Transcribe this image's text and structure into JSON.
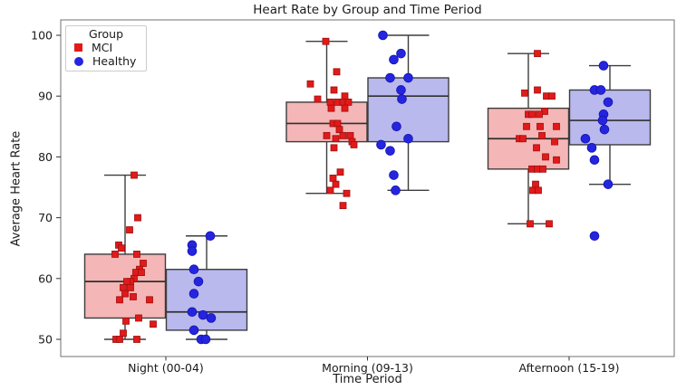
{
  "chart_data": {
    "type": "boxplot-with-strip-points",
    "title": "Heart Rate by Group and Time Period",
    "xlabel": "Time Period",
    "ylabel": "Average Heart Rate",
    "categories": [
      "Night (00-04)",
      "Morning (09-13)",
      "Afternoon (15-19)"
    ],
    "y_ticks": [
      50,
      60,
      70,
      80,
      90,
      100
    ],
    "ylim": [
      47,
      102.5
    ],
    "grid": false,
    "legend": {
      "title": "Group",
      "position": "upper left",
      "entries": [
        {
          "label": "MCI",
          "marker": "square",
          "color": "#e11a1a"
        },
        {
          "label": "Healthy",
          "marker": "circle",
          "color": "#2525e0"
        }
      ]
    },
    "colors": {
      "box_edge": "#3d3d3d",
      "median_line": "#303030",
      "whisker": "#3d3d3d",
      "spine": "#707070",
      "tick": "#333333",
      "mci_box_fill": "#f4b6b6",
      "healthy_box_fill": "#b9b9ee",
      "mci_marker": "#e11a1a",
      "mci_marker_edge": "#a00f0f",
      "healthy_marker": "#2525e0",
      "healthy_marker_edge": "#1414ad"
    },
    "series": [
      {
        "name": "MCI",
        "marker": "square",
        "boxes": [
          {
            "category": "Night (00-04)",
            "whisker_low": 50,
            "q1": 53.5,
            "median": 59.5,
            "q3": 64,
            "whisker_high": 77
          },
          {
            "category": "Morning (09-13)",
            "whisker_low": 74,
            "q1": 82.5,
            "median": 85.5,
            "q3": 89,
            "whisker_high": 99
          },
          {
            "category": "Afternoon (15-19)",
            "whisker_low": 69,
            "q1": 78,
            "median": 83,
            "q3": 88,
            "whisker_high": 97
          }
        ],
        "points": [
          [
            [
              77,
              10
            ],
            [
              70,
              14
            ],
            [
              68,
              5
            ],
            [
              65.5,
              -7
            ],
            [
              65,
              -4
            ],
            [
              64,
              -11
            ],
            [
              64,
              13
            ],
            [
              62.5,
              20
            ],
            [
              61.5,
              16
            ],
            [
              61,
              12
            ],
            [
              61,
              18
            ],
            [
              60,
              10
            ],
            [
              59.5,
              6
            ],
            [
              59.5,
              2
            ],
            [
              58.5,
              -2
            ],
            [
              58.5,
              6
            ],
            [
              57.5,
              0
            ],
            [
              57,
              9
            ],
            [
              56.5,
              -6
            ],
            [
              56.5,
              27
            ],
            [
              53.5,
              15
            ],
            [
              53,
              1
            ],
            [
              52.5,
              31
            ],
            [
              51,
              -2
            ],
            [
              50,
              -10
            ],
            [
              50,
              -6
            ],
            [
              50,
              13
            ]
          ],
          [
            [
              99,
              -1
            ],
            [
              94,
              11
            ],
            [
              92,
              -18
            ],
            [
              91,
              8
            ],
            [
              90,
              20
            ],
            [
              89.5,
              -10
            ],
            [
              89,
              4
            ],
            [
              89,
              12
            ],
            [
              89,
              18
            ],
            [
              89,
              24
            ],
            [
              88,
              5
            ],
            [
              88,
              20
            ],
            [
              85.5,
              7
            ],
            [
              85.5,
              12
            ],
            [
              84.5,
              14
            ],
            [
              83.5,
              0
            ],
            [
              83.5,
              18
            ],
            [
              83.5,
              26
            ],
            [
              83,
              10
            ],
            [
              82.5,
              28
            ],
            [
              82,
              30
            ],
            [
              81.5,
              8
            ],
            [
              77.5,
              15
            ],
            [
              76.5,
              7
            ],
            [
              75.5,
              10
            ],
            [
              74.5,
              4
            ],
            [
              74,
              22
            ],
            [
              72,
              18
            ]
          ],
          [
            [
              97,
              10
            ],
            [
              91,
              10
            ],
            [
              90.5,
              -4
            ],
            [
              90,
              20
            ],
            [
              90,
              26
            ],
            [
              87.5,
              18
            ],
            [
              87,
              0
            ],
            [
              87,
              4
            ],
            [
              87,
              12
            ],
            [
              85,
              -2
            ],
            [
              85,
              13
            ],
            [
              85,
              31
            ],
            [
              83.5,
              15
            ],
            [
              83,
              -10
            ],
            [
              83,
              -6
            ],
            [
              82.5,
              29
            ],
            [
              81.5,
              9
            ],
            [
              80,
              19
            ],
            [
              79.5,
              31
            ],
            [
              78,
              4
            ],
            [
              78,
              10
            ],
            [
              78,
              16
            ],
            [
              75.5,
              8
            ],
            [
              74.5,
              5
            ],
            [
              74.5,
              11
            ],
            [
              69,
              2
            ],
            [
              69,
              23
            ]
          ]
        ]
      },
      {
        "name": "Healthy",
        "marker": "circle",
        "boxes": [
          {
            "category": "Night (00-04)",
            "whisker_low": 50,
            "q1": 51.5,
            "median": 54.5,
            "q3": 61.5,
            "whisker_high": 67
          },
          {
            "category": "Morning (09-13)",
            "whisker_low": 74.5,
            "q1": 82.5,
            "median": 90,
            "q3": 93,
            "whisker_high": 100
          },
          {
            "category": "Afternoon (15-19)",
            "whisker_low": 75.5,
            "q1": 82,
            "median": 86,
            "q3": 91,
            "whisker_high": 95
          }
        ],
        "points": [
          [
            [
              67,
              4
            ],
            [
              65.5,
              -16
            ],
            [
              64.5,
              -16
            ],
            [
              61.5,
              -14
            ],
            [
              59.5,
              -9
            ],
            [
              57.5,
              -14
            ],
            [
              54.5,
              -16
            ],
            [
              54,
              -4
            ],
            [
              53.5,
              5
            ],
            [
              51.5,
              -14
            ],
            [
              50,
              -6
            ],
            [
              50,
              -1
            ]
          ],
          [
            [
              100,
              -28
            ],
            [
              97,
              -8
            ],
            [
              96,
              -16
            ],
            [
              93,
              -20
            ],
            [
              93,
              0
            ],
            [
              91,
              -8
            ],
            [
              89.5,
              -7
            ],
            [
              85,
              -13
            ],
            [
              83,
              0
            ],
            [
              82,
              -30
            ],
            [
              81,
              -20
            ],
            [
              77,
              -16
            ],
            [
              74.5,
              -14
            ]
          ],
          [
            [
              95,
              -7
            ],
            [
              91,
              -17
            ],
            [
              91,
              -10
            ],
            [
              89,
              -2
            ],
            [
              87,
              -7
            ],
            [
              86,
              -8
            ],
            [
              84.5,
              -6
            ],
            [
              83,
              -27
            ],
            [
              81.5,
              -20
            ],
            [
              79.5,
              -17
            ],
            [
              75.5,
              -2
            ],
            [
              67,
              -17
            ]
          ]
        ]
      }
    ]
  }
}
